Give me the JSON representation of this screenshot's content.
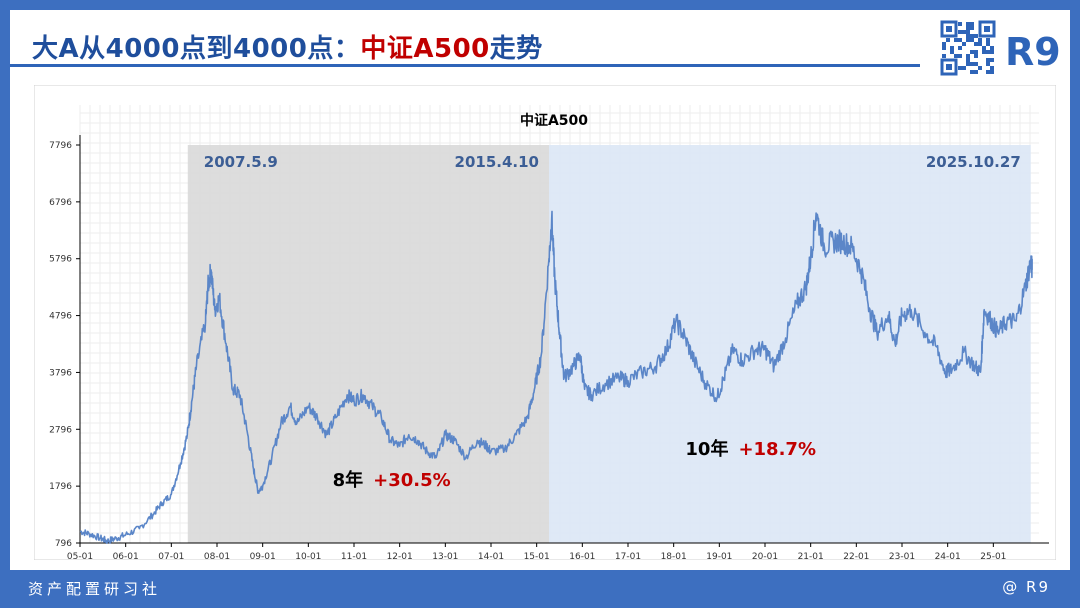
{
  "header": {
    "title_part1": "大A从4000点到4000点：",
    "title_part2": "中证A500",
    "title_part3": "走势",
    "brand": "R9"
  },
  "footer": {
    "left": "资产配置研习社",
    "right": "@ R9"
  },
  "colors": {
    "frame": "#3d6fc0",
    "title_blue": "#1f4e9c",
    "accent_red": "#c00000",
    "line": "#5b86c8",
    "shade_gray": "#d9d9d9",
    "shade_blue": "#dce7f5",
    "annotation_blue": "#3c5e95"
  },
  "chart_data": {
    "type": "line",
    "title": "中证A500",
    "xlabel": "",
    "ylabel": "",
    "ylim": [
      796,
      7796
    ],
    "grid": true,
    "y_ticks": [
      "796",
      "1796",
      "2796",
      "3796",
      "4796",
      "5796",
      "6796",
      "7796"
    ],
    "x_ticks": [
      "05-01",
      "06-01",
      "07-01",
      "08-01",
      "09-01",
      "10-01",
      "11-01",
      "12-01",
      "13-01",
      "14-01",
      "15-01",
      "16-01",
      "17-01",
      "18-01",
      "19-01",
      "20-01",
      "21-01",
      "22-01",
      "23-01",
      "24-01",
      "25-01"
    ],
    "series": [
      {
        "name": "中证A500",
        "points": [
          [
            2005.0,
            1000
          ],
          [
            2005.2,
            960
          ],
          [
            2005.45,
            880
          ],
          [
            2005.6,
            830
          ],
          [
            2005.8,
            880
          ],
          [
            2006.0,
            940
          ],
          [
            2006.3,
            1050
          ],
          [
            2006.6,
            1300
          ],
          [
            2006.8,
            1500
          ],
          [
            2007.0,
            1650
          ],
          [
            2007.2,
            2200
          ],
          [
            2007.35,
            2700
          ],
          [
            2007.45,
            3300
          ],
          [
            2007.55,
            3900
          ],
          [
            2007.75,
            4700
          ],
          [
            2007.8,
            5300
          ],
          [
            2007.87,
            5600
          ],
          [
            2007.95,
            4900
          ],
          [
            2008.05,
            5100
          ],
          [
            2008.2,
            4300
          ],
          [
            2008.35,
            3500
          ],
          [
            2008.5,
            3400
          ],
          [
            2008.65,
            2800
          ],
          [
            2008.8,
            2100
          ],
          [
            2008.9,
            1700
          ],
          [
            2009.0,
            1800
          ],
          [
            2009.2,
            2300
          ],
          [
            2009.4,
            2900
          ],
          [
            2009.6,
            3200
          ],
          [
            2009.75,
            2900
          ],
          [
            2010.0,
            3200
          ],
          [
            2010.2,
            3000
          ],
          [
            2010.4,
            2700
          ],
          [
            2010.6,
            3000
          ],
          [
            2010.85,
            3400
          ],
          [
            2011.0,
            3300
          ],
          [
            2011.2,
            3400
          ],
          [
            2011.4,
            3200
          ],
          [
            2011.6,
            3000
          ],
          [
            2011.8,
            2600
          ],
          [
            2012.0,
            2500
          ],
          [
            2012.2,
            2700
          ],
          [
            2012.4,
            2600
          ],
          [
            2012.6,
            2400
          ],
          [
            2012.8,
            2300
          ],
          [
            2013.0,
            2700
          ],
          [
            2013.2,
            2600
          ],
          [
            2013.45,
            2300
          ],
          [
            2013.7,
            2600
          ],
          [
            2013.9,
            2500
          ],
          [
            2014.0,
            2400
          ],
          [
            2014.3,
            2450
          ],
          [
            2014.55,
            2700
          ],
          [
            2014.8,
            3000
          ],
          [
            2014.95,
            3500
          ],
          [
            2015.1,
            4100
          ],
          [
            2015.27,
            5800
          ],
          [
            2015.33,
            6500
          ],
          [
            2015.4,
            5400
          ],
          [
            2015.5,
            4500
          ],
          [
            2015.6,
            3700
          ],
          [
            2015.8,
            3900
          ],
          [
            2015.95,
            4100
          ],
          [
            2016.05,
            3500
          ],
          [
            2016.2,
            3400
          ],
          [
            2016.5,
            3600
          ],
          [
            2016.8,
            3700
          ],
          [
            2017.0,
            3650
          ],
          [
            2017.3,
            3800
          ],
          [
            2017.6,
            3900
          ],
          [
            2017.85,
            4200
          ],
          [
            2018.05,
            4700
          ],
          [
            2018.25,
            4400
          ],
          [
            2018.45,
            4000
          ],
          [
            2018.7,
            3600
          ],
          [
            2018.95,
            3350
          ],
          [
            2019.1,
            3700
          ],
          [
            2019.3,
            4200
          ],
          [
            2019.5,
            4000
          ],
          [
            2019.8,
            4200
          ],
          [
            2020.0,
            4200
          ],
          [
            2020.2,
            3900
          ],
          [
            2020.45,
            4400
          ],
          [
            2020.7,
            5000
          ],
          [
            2020.9,
            5300
          ],
          [
            2021.0,
            5800
          ],
          [
            2021.12,
            6600
          ],
          [
            2021.3,
            6000
          ],
          [
            2021.5,
            6100
          ],
          [
            2021.7,
            6100
          ],
          [
            2021.9,
            6000
          ],
          [
            2022.1,
            5600
          ],
          [
            2022.3,
            4900
          ],
          [
            2022.45,
            4500
          ],
          [
            2022.7,
            4800
          ],
          [
            2022.85,
            4300
          ],
          [
            2023.0,
            4800
          ],
          [
            2023.2,
            4900
          ],
          [
            2023.5,
            4500
          ],
          [
            2023.75,
            4250
          ],
          [
            2023.95,
            3800
          ],
          [
            2024.1,
            3850
          ],
          [
            2024.35,
            4150
          ],
          [
            2024.6,
            3900
          ],
          [
            2024.72,
            3800
          ],
          [
            2024.8,
            4900
          ],
          [
            2024.95,
            4700
          ],
          [
            2025.1,
            4500
          ],
          [
            2025.3,
            4700
          ],
          [
            2025.5,
            4700
          ],
          [
            2025.7,
            5300
          ],
          [
            2025.82,
            5750
          ],
          [
            2025.85,
            5600
          ]
        ]
      }
    ],
    "regions": [
      {
        "start": 2007.36,
        "end": 2015.27,
        "shade": "gray",
        "label_left": "2007.5.9",
        "label_right": "2015.4.10"
      },
      {
        "start": 2015.27,
        "end": 2025.82,
        "shade": "blue",
        "label_right": "2025.10.27"
      }
    ],
    "annotations": [
      {
        "years": "8年",
        "change": "+30.5%",
        "at_year": 2011.2,
        "at_value": 1796
      },
      {
        "years": "10年",
        "change": "+18.7%",
        "at_year": 2019.2,
        "at_value": 2340
      }
    ]
  }
}
